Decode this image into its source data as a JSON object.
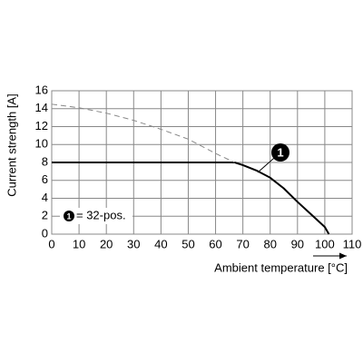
{
  "chart_data": {
    "type": "line",
    "x_label": "Ambient temperature [°C]",
    "y_label": "Current strength [A]",
    "x": [
      0,
      10,
      20,
      30,
      40,
      50,
      60,
      67,
      70,
      75,
      80,
      85,
      90,
      95,
      100,
      101.5
    ],
    "series": [
      {
        "color": "#000000",
        "style": "solid",
        "values": [
          8,
          8,
          8,
          8,
          8,
          8,
          8,
          8,
          7.7,
          7.1,
          6.3,
          5.1,
          3.6,
          2.2,
          0.8,
          0
        ]
      },
      {
        "color": "#888888",
        "style": "dashed",
        "values": [
          14.5,
          14.1,
          13.5,
          12.7,
          11.7,
          10.6,
          9.0,
          8,
          null,
          null,
          null,
          null,
          null,
          null,
          null,
          null
        ]
      }
    ],
    "annotation": "1",
    "legend_note": {
      "marker": "1",
      "text": "= 32-pos."
    },
    "xlim": [
      0,
      110
    ],
    "xticks": [
      0,
      10,
      20,
      30,
      40,
      50,
      60,
      70,
      80,
      90,
      100,
      110
    ],
    "ylim": [
      0,
      16
    ],
    "yticks": [
      0,
      2,
      4,
      6,
      8,
      10,
      12,
      14,
      16
    ],
    "grid": true
  }
}
